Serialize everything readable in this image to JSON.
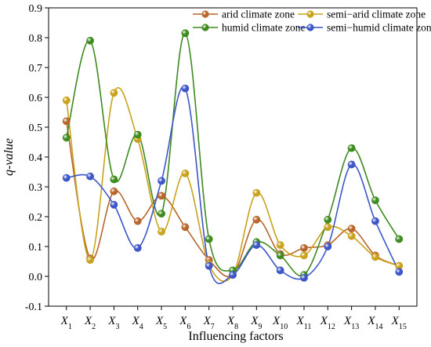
{
  "chart_data": {
    "type": "line",
    "smooth": true,
    "categories": [
      {
        "base": "X",
        "sub": "1"
      },
      {
        "base": "X",
        "sub": "2"
      },
      {
        "base": "X",
        "sub": "3"
      },
      {
        "base": "X",
        "sub": "4"
      },
      {
        "base": "X",
        "sub": "5"
      },
      {
        "base": "X",
        "sub": "6"
      },
      {
        "base": "X",
        "sub": "7"
      },
      {
        "base": "X",
        "sub": "8"
      },
      {
        "base": "X",
        "sub": "9"
      },
      {
        "base": "X",
        "sub": "10"
      },
      {
        "base": "X",
        "sub": "11"
      },
      {
        "base": "X",
        "sub": "12"
      },
      {
        "base": "X",
        "sub": "13"
      },
      {
        "base": "X",
        "sub": "14"
      },
      {
        "base": "X",
        "sub": "15"
      }
    ],
    "xlabel": "Influencing factors",
    "ylabel": "q-value",
    "ylim": [
      -0.1,
      0.9
    ],
    "yticks": [
      "-0.1",
      "0.0",
      "0.1",
      "0.2",
      "0.3",
      "0.4",
      "0.5",
      "0.6",
      "0.7",
      "0.8",
      "0.9"
    ],
    "legend": "top-right",
    "series": [
      {
        "name": "arid climate zone",
        "color": "#b8652a",
        "values": [
          0.52,
          0.06,
          0.285,
          0.185,
          0.27,
          0.165,
          0.055,
          0.005,
          0.19,
          0.075,
          0.095,
          0.105,
          0.16,
          0.07,
          0.035
        ]
      },
      {
        "name": "semi−arid climate zone",
        "color": "#c8a21a",
        "values": [
          0.59,
          0.055,
          0.615,
          0.46,
          0.15,
          0.345,
          0.04,
          0.005,
          0.28,
          0.105,
          0.07,
          0.165,
          0.135,
          0.065,
          0.035
        ]
      },
      {
        "name": "humid climate zone",
        "color": "#3d8a1e",
        "values": [
          0.465,
          0.79,
          0.325,
          0.475,
          0.21,
          0.815,
          0.125,
          0.02,
          0.115,
          0.07,
          0.005,
          0.19,
          0.43,
          0.255,
          0.125
        ]
      },
      {
        "name": "semi−humid climate zone",
        "color": "#3c55c8",
        "values": [
          0.33,
          0.335,
          0.24,
          0.095,
          0.32,
          0.63,
          0.035,
          0.005,
          0.105,
          0.02,
          -0.005,
          0.1,
          0.375,
          0.185,
          0.015
        ]
      }
    ]
  }
}
